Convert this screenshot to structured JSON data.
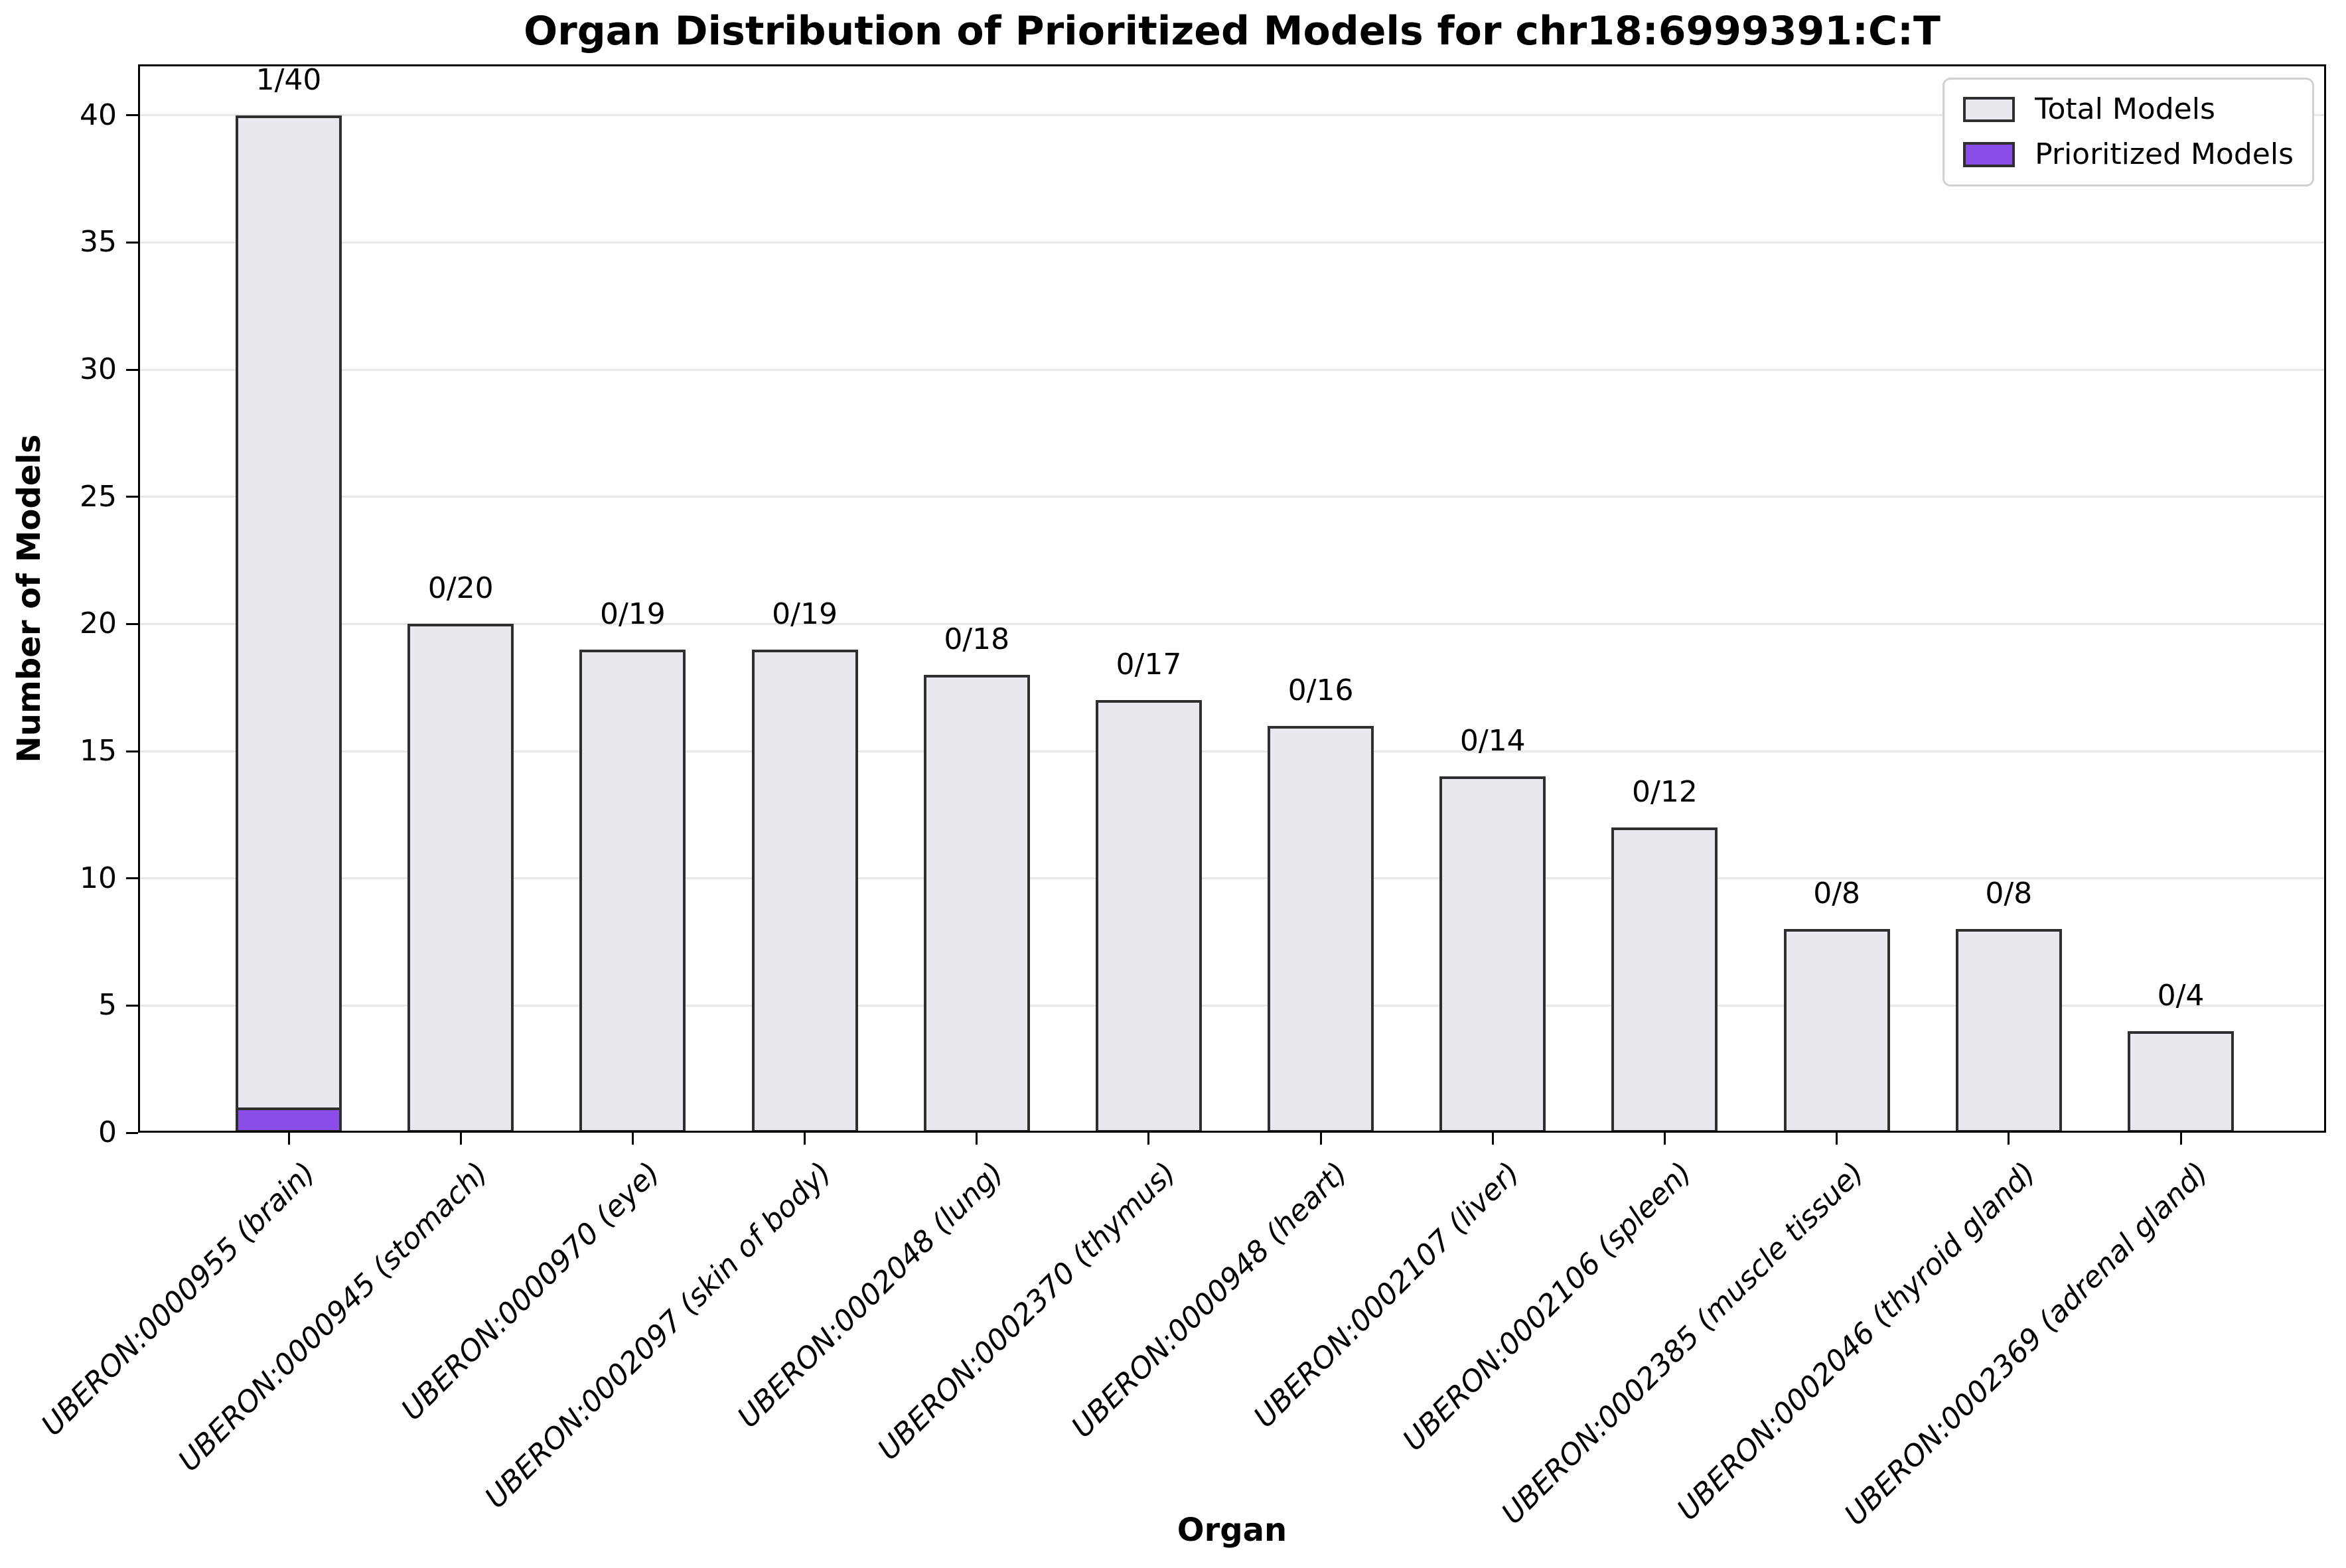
{
  "chart_data": {
    "type": "bar",
    "title": "Organ Distribution of Prioritized Models for chr18:6999391:C:T",
    "xlabel": "Organ",
    "ylabel": "Number of Models",
    "categories": [
      "UBERON:0000955 (brain)",
      "UBERON:0000945 (stomach)",
      "UBERON:0000970 (eye)",
      "UBERON:0002097 (skin of body)",
      "UBERON:0002048 (lung)",
      "UBERON:0002370 (thymus)",
      "UBERON:0000948 (heart)",
      "UBERON:0002107 (liver)",
      "UBERON:0002106 (spleen)",
      "UBERON:0002385 (muscle tissue)",
      "UBERON:0002046 (thyroid gland)",
      "UBERON:0002369 (adrenal gland)"
    ],
    "series": [
      {
        "name": "Total Models",
        "values": [
          40,
          20,
          19,
          19,
          18,
          17,
          16,
          14,
          12,
          8,
          8,
          4
        ],
        "color": "#E8E9EE"
      },
      {
        "name": "Prioritized Models",
        "values": [
          1,
          0,
          0,
          0,
          0,
          0,
          0,
          0,
          0,
          0,
          0,
          0
        ],
        "color": "#8A4DE8"
      }
    ],
    "bar_labels": [
      "1/40",
      "0/20",
      "0/19",
      "0/19",
      "0/18",
      "0/17",
      "0/16",
      "0/14",
      "0/12",
      "0/8",
      "0/8",
      "0/4"
    ],
    "yticks": [
      0,
      5,
      10,
      15,
      20,
      25,
      30,
      35,
      40
    ],
    "ylim": [
      0,
      42
    ],
    "grid": "horizontal",
    "legend_position": "upper right",
    "colors": {
      "bar_edge": "#2F2F2F",
      "grid": "#E8E8E8",
      "legend_border": "#D0D0D0",
      "axis": "#000000"
    }
  }
}
